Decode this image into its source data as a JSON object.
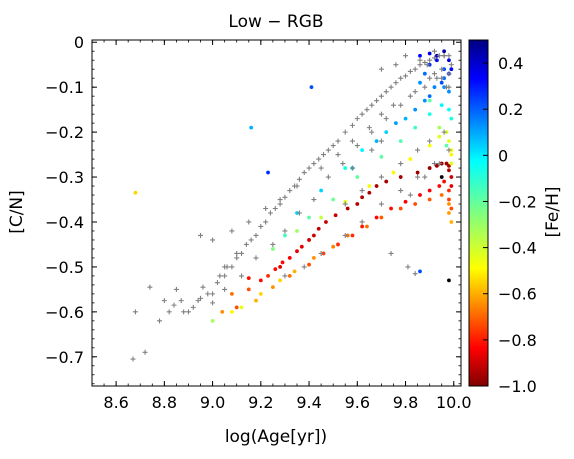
{
  "chart_data": {
    "type": "scatter",
    "title": "Low − RGB",
    "xlabel": "log(Age[yr])",
    "ylabel": "[C/N]",
    "xlim": [
      8.5,
      10.03
    ],
    "ylim": [
      -0.765,
      0.005
    ],
    "xticks": [
      {
        "v": 8.6,
        "label": "8.6"
      },
      {
        "v": 8.8,
        "label": "8.8"
      },
      {
        "v": 9.0,
        "label": "9.0"
      },
      {
        "v": 9.2,
        "label": "9.2"
      },
      {
        "v": 9.4,
        "label": "9.4"
      },
      {
        "v": 9.6,
        "label": "9.6"
      },
      {
        "v": 9.8,
        "label": "9.8"
      },
      {
        "v": 10.0,
        "label": "10.0"
      }
    ],
    "yticks": [
      {
        "v": 0.0,
        "label": "0"
      },
      {
        "v": -0.1,
        "label": "−0.1"
      },
      {
        "v": -0.2,
        "label": "−0.2"
      },
      {
        "v": -0.3,
        "label": "−0.3"
      },
      {
        "v": -0.4,
        "label": "−0.4"
      },
      {
        "v": -0.5,
        "label": "−0.5"
      },
      {
        "v": -0.6,
        "label": "−0.6"
      },
      {
        "v": -0.7,
        "label": "−0.7"
      }
    ],
    "colorbar": {
      "label": "[Fe/H]",
      "cmap": "jet",
      "range": [
        -1.0,
        0.5
      ],
      "ticks": [
        {
          "v": 0.4,
          "label": "0.4"
        },
        {
          "v": 0.2,
          "label": "0.2"
        },
        {
          "v": 0.0,
          "label": "0"
        },
        {
          "v": -0.2,
          "label": "−0.2"
        },
        {
          "v": -0.4,
          "label": "−0.4"
        },
        {
          "v": -0.6,
          "label": "−0.6"
        },
        {
          "v": -0.8,
          "label": "−0.8"
        },
        {
          "v": -1.0,
          "label": "−1.0"
        }
      ]
    },
    "grid": false,
    "series": [
      {
        "marker": "dot",
        "color_by": "[Fe/H]",
        "x": [
          8.68,
          9.04,
          9.1,
          9.08,
          9.15,
          9.15,
          9.2,
          9.23,
          9.26,
          9.28,
          9.29,
          9.32,
          9.35,
          9.37,
          9.4,
          9.42,
          9.44,
          9.47,
          9.51,
          9.56,
          9.6,
          9.62,
          9.65,
          9.68,
          9.72,
          9.78,
          9.85,
          9.9,
          9.93,
          9.95,
          9.97,
          9.98,
          9.98,
          9.99,
          9.99,
          9.08,
          9.18,
          9.25,
          9.32,
          9.4,
          9.46,
          9.52,
          9.58,
          9.62,
          9.68,
          9.74,
          9.8,
          9.86,
          9.9,
          9.94,
          9.96,
          9.98,
          9.98,
          9.99,
          9.0,
          9.12,
          9.2,
          9.28,
          9.34,
          9.42,
          9.5,
          9.56,
          9.64,
          9.7,
          9.78,
          9.84,
          9.9,
          9.95,
          9.98,
          9.98,
          9.99,
          9.25,
          9.35,
          9.45,
          9.55,
          9.65,
          9.75,
          9.82,
          9.9,
          9.94,
          9.97,
          9.98,
          9.99,
          9.99,
          9.3,
          9.4,
          9.5,
          9.6,
          9.7,
          9.78,
          9.84,
          9.9,
          9.95,
          9.98,
          9.99,
          9.96,
          9.96,
          9.93,
          9.9,
          9.88,
          9.86,
          9.55,
          9.62,
          9.72,
          9.8,
          9.88,
          9.92,
          9.96,
          9.98,
          9.35,
          9.45,
          9.58,
          9.68,
          9.76,
          9.84,
          9.9,
          9.95,
          9.98,
          9.86,
          9.9,
          9.93,
          9.96,
          9.98,
          9.99,
          9.94,
          9.97,
          9.99,
          9.16,
          9.41,
          9.23,
          9.86,
          9.9,
          9.98,
          9.95
        ],
        "y": [
          -0.335,
          -0.6,
          -0.59,
          -0.56,
          -0.55,
          -0.525,
          -0.53,
          -0.52,
          -0.505,
          -0.5,
          -0.49,
          -0.48,
          -0.465,
          -0.455,
          -0.44,
          -0.43,
          -0.415,
          -0.4,
          -0.385,
          -0.37,
          -0.36,
          -0.345,
          -0.335,
          -0.32,
          -0.31,
          -0.3,
          -0.29,
          -0.28,
          -0.275,
          -0.27,
          -0.27,
          -0.275,
          -0.285,
          -0.3,
          -0.32,
          -0.6,
          -0.575,
          -0.545,
          -0.52,
          -0.495,
          -0.47,
          -0.45,
          -0.43,
          -0.41,
          -0.39,
          -0.37,
          -0.355,
          -0.34,
          -0.33,
          -0.32,
          -0.31,
          -0.33,
          -0.35,
          -0.37,
          -0.62,
          -0.59,
          -0.56,
          -0.53,
          -0.51,
          -0.48,
          -0.455,
          -0.43,
          -0.41,
          -0.39,
          -0.37,
          -0.36,
          -0.35,
          -0.34,
          -0.36,
          -0.38,
          -0.4,
          -0.46,
          -0.42,
          -0.39,
          -0.355,
          -0.32,
          -0.29,
          -0.26,
          -0.23,
          -0.21,
          -0.2,
          -0.22,
          -0.24,
          -0.25,
          -0.43,
          -0.39,
          -0.35,
          -0.3,
          -0.255,
          -0.22,
          -0.19,
          -0.16,
          -0.14,
          -0.15,
          -0.17,
          -0.1,
          -0.06,
          -0.04,
          -0.05,
          -0.07,
          -0.09,
          -0.28,
          -0.24,
          -0.2,
          -0.17,
          -0.13,
          -0.1,
          -0.08,
          -0.11,
          -0.38,
          -0.33,
          -0.28,
          -0.22,
          -0.18,
          -0.15,
          -0.12,
          -0.09,
          -0.07,
          -0.03,
          -0.025,
          -0.03,
          -0.02,
          -0.04,
          -0.06,
          -0.19,
          -0.23,
          -0.27,
          -0.19,
          -0.1,
          -0.29,
          -0.51,
          -0.13,
          -0.53,
          -0.3
        ],
        "fe_h": [
          0.0,
          0.1,
          0.2,
          0.15,
          0.2,
          0.3,
          0.3,
          0.25,
          0.3,
          0.35,
          0.3,
          0.32,
          0.35,
          0.35,
          0.38,
          0.38,
          0.4,
          0.4,
          0.4,
          0.42,
          0.42,
          0.42,
          0.43,
          0.44,
          0.44,
          0.45,
          0.45,
          0.46,
          0.46,
          0.46,
          0.46,
          0.44,
          0.42,
          0.38,
          0.35,
          -0.05,
          0.05,
          0.1,
          0.15,
          0.2,
          0.22,
          0.25,
          0.25,
          0.28,
          0.3,
          0.3,
          0.32,
          0.32,
          0.32,
          0.3,
          0.3,
          0.25,
          0.22,
          0.2,
          -0.2,
          -0.1,
          0.0,
          0.0,
          0.05,
          0.1,
          0.12,
          0.15,
          0.15,
          0.18,
          0.2,
          0.2,
          0.18,
          0.15,
          0.1,
          0.08,
          0.05,
          -0.25,
          -0.2,
          -0.15,
          -0.1,
          -0.08,
          -0.05,
          -0.05,
          -0.08,
          -0.1,
          -0.12,
          -0.1,
          -0.08,
          -0.05,
          -0.35,
          -0.3,
          -0.28,
          -0.3,
          -0.3,
          -0.32,
          -0.35,
          -0.4,
          -0.45,
          -0.42,
          -0.4,
          -0.6,
          -0.7,
          -0.8,
          -0.75,
          -0.65,
          -0.6,
          -0.4,
          -0.45,
          -0.5,
          -0.55,
          -0.6,
          -0.62,
          -0.65,
          -0.6,
          -0.5,
          -0.5,
          -0.5,
          -0.55,
          -0.58,
          -0.6,
          -0.65,
          -0.7,
          -0.75,
          -0.8,
          -0.85,
          -0.9,
          -0.95,
          -0.85,
          -0.8,
          -0.2,
          -0.3,
          -0.1,
          -0.55,
          -0.7,
          -0.75,
          -0.7,
          -0.3
        ]
      },
      {
        "marker": "plus",
        "color": "#808080",
        "x": [
          8.67,
          8.68,
          8.72,
          8.74,
          8.78,
          8.8,
          8.82,
          8.84,
          8.85,
          8.87,
          8.88,
          8.9,
          8.92,
          8.94,
          8.95,
          8.96,
          8.98,
          9.0,
          9.02,
          9.03,
          9.05,
          9.06,
          9.08,
          9.1,
          9.12,
          9.14,
          9.16,
          9.18,
          9.2,
          9.22,
          9.24,
          9.26,
          9.28,
          9.3,
          9.32,
          9.34,
          9.36,
          9.38,
          9.4,
          9.42,
          9.44,
          9.46,
          9.48,
          9.5,
          9.52,
          9.55,
          9.58,
          9.6,
          9.62,
          9.64,
          9.66,
          9.68,
          9.7,
          9.72,
          9.74,
          9.76,
          9.78,
          9.8,
          9.82,
          9.84,
          9.86,
          9.88,
          9.9,
          9.92,
          9.94,
          9.96,
          9.98,
          9.99,
          9.0,
          9.05,
          9.12,
          9.18,
          9.25,
          9.3,
          9.36,
          9.42,
          9.48,
          9.54,
          9.6,
          9.66,
          9.72,
          9.78,
          9.84,
          9.9,
          9.95,
          9.98,
          8.95,
          9.0,
          9.08,
          9.15,
          9.22,
          9.28,
          9.35,
          9.45,
          9.52,
          9.58,
          9.65,
          9.7,
          9.75,
          9.82,
          9.88,
          9.93,
          9.97,
          9.3,
          9.38,
          9.45,
          9.55,
          9.62,
          9.7,
          9.78,
          9.85,
          9.92,
          9.98,
          9.55,
          9.62,
          9.7,
          9.78,
          9.85,
          9.9,
          9.96,
          9.82,
          9.88,
          9.94,
          9.7,
          9.76,
          9.8,
          9.86,
          9.92,
          9.96,
          9.89,
          9.92,
          9.95,
          9.98,
          9.84,
          9.74,
          9.81,
          9.05,
          9.1,
          9.58,
          9.66,
          9.7
        ],
        "y": [
          -0.705,
          -0.6,
          -0.69,
          -0.545,
          -0.62,
          -0.575,
          -0.6,
          -0.585,
          -0.55,
          -0.575,
          -0.6,
          -0.6,
          -0.59,
          -0.575,
          -0.57,
          -0.545,
          -0.56,
          -0.56,
          -0.535,
          -0.52,
          -0.52,
          -0.5,
          -0.5,
          -0.48,
          -0.47,
          -0.45,
          -0.44,
          -0.43,
          -0.41,
          -0.4,
          -0.38,
          -0.37,
          -0.36,
          -0.345,
          -0.33,
          -0.32,
          -0.305,
          -0.29,
          -0.28,
          -0.27,
          -0.26,
          -0.25,
          -0.24,
          -0.23,
          -0.22,
          -0.2,
          -0.185,
          -0.17,
          -0.16,
          -0.15,
          -0.14,
          -0.13,
          -0.12,
          -0.11,
          -0.1,
          -0.09,
          -0.08,
          -0.075,
          -0.065,
          -0.06,
          -0.05,
          -0.045,
          -0.04,
          -0.035,
          -0.03,
          -0.03,
          -0.03,
          -0.05,
          -0.58,
          -0.55,
          -0.52,
          -0.48,
          -0.45,
          -0.42,
          -0.38,
          -0.35,
          -0.3,
          -0.27,
          -0.23,
          -0.2,
          -0.17,
          -0.14,
          -0.11,
          -0.08,
          -0.06,
          -0.07,
          -0.43,
          -0.44,
          -0.42,
          -0.4,
          -0.37,
          -0.35,
          -0.32,
          -0.28,
          -0.25,
          -0.22,
          -0.19,
          -0.16,
          -0.14,
          -0.12,
          -0.1,
          -0.08,
          -0.1,
          -0.52,
          -0.5,
          -0.47,
          -0.43,
          -0.4,
          -0.36,
          -0.33,
          -0.3,
          -0.27,
          -0.24,
          -0.36,
          -0.33,
          -0.3,
          -0.27,
          -0.24,
          -0.22,
          -0.2,
          -0.34,
          -0.3,
          -0.27,
          -0.06,
          -0.05,
          -0.03,
          -0.04,
          -0.02,
          -0.03,
          -0.05,
          -0.07,
          -0.08,
          -0.1,
          -0.515,
          -0.47,
          -0.5,
          -0.5,
          -0.47,
          -0.28,
          -0.24,
          -0.22
        ]
      }
    ]
  }
}
